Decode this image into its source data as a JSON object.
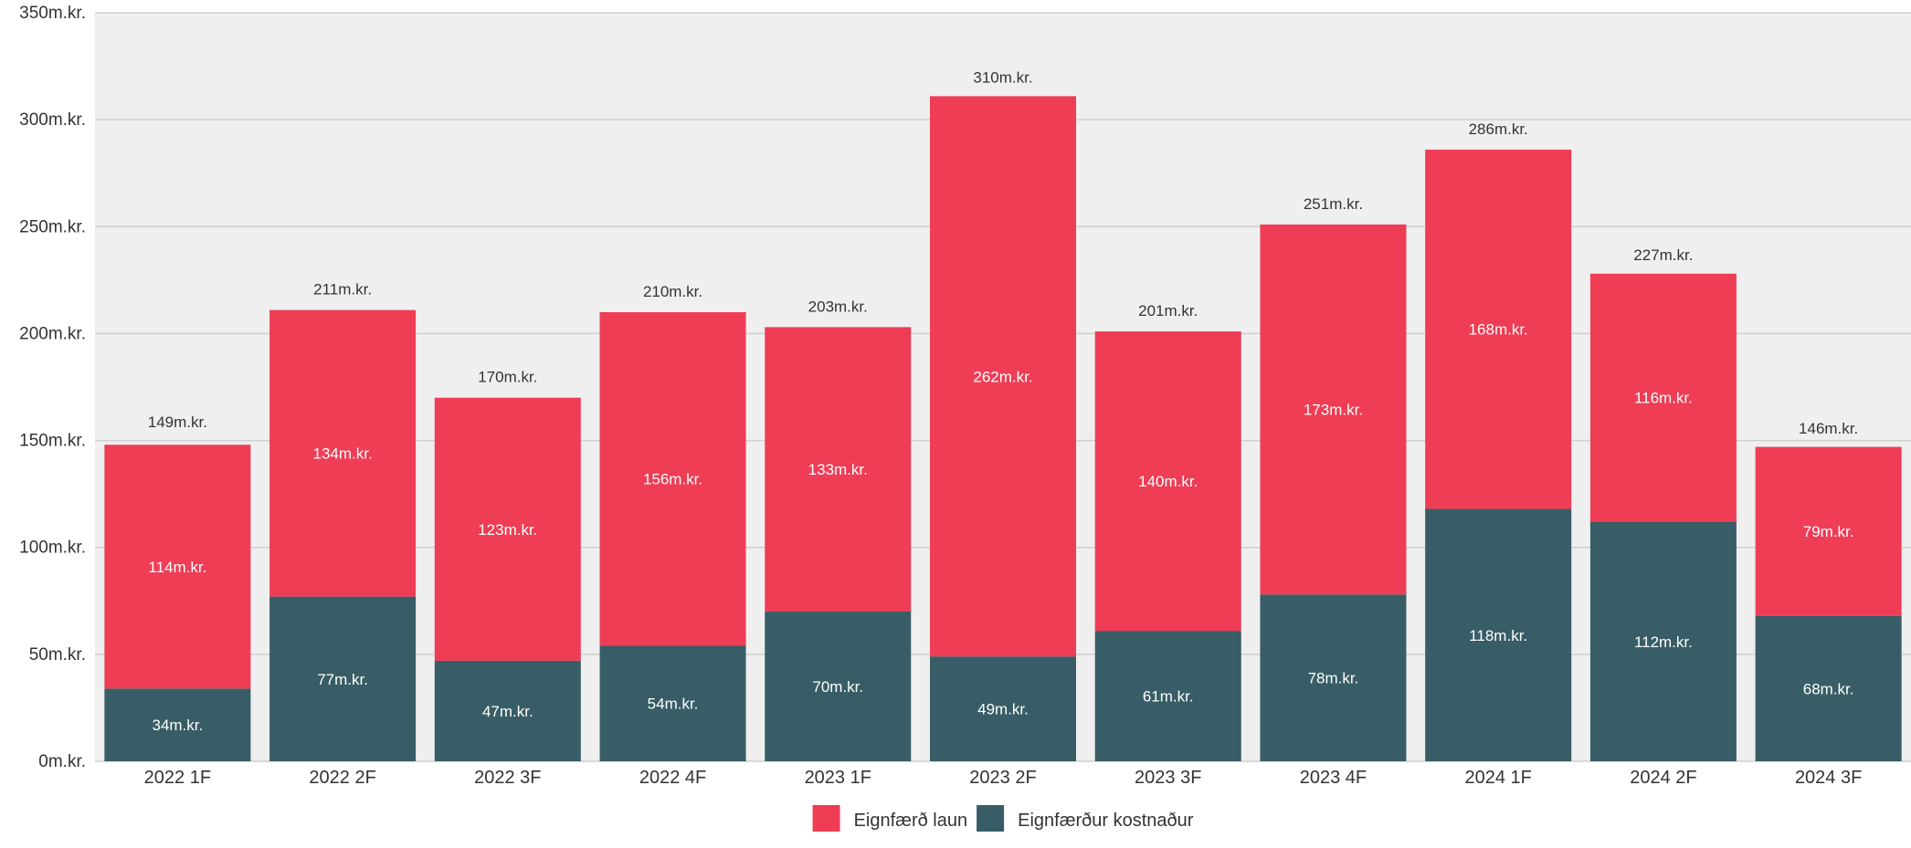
{
  "chart_data": {
    "type": "bar",
    "stacked": true,
    "categories": [
      "2022 1F",
      "2022 2F",
      "2022 3F",
      "2022 4F",
      "2023 1F",
      "2023 2F",
      "2023 3F",
      "2023 4F",
      "2024 1F",
      "2024 2F",
      "2024 3F"
    ],
    "series": [
      {
        "name": "Eignfærður kostnaður",
        "color": "#385d66",
        "values": [
          34,
          77,
          47,
          54,
          70,
          49,
          61,
          78,
          118,
          112,
          68
        ]
      },
      {
        "name": "Eignfærð laun",
        "color": "#ee3d55",
        "values": [
          114,
          134,
          123,
          156,
          133,
          262,
          140,
          173,
          168,
          116,
          79
        ]
      }
    ],
    "segment_labels": [
      [
        "34m.kr.",
        "77m.kr.",
        "47m.kr.",
        "54m.kr.",
        "70m.kr.",
        "49m.kr.",
        "61m.kr.",
        "78m.kr.",
        "118m.kr.",
        "112m.kr.",
        "68m.kr."
      ],
      [
        "114m.kr.",
        "134m.kr.",
        "123m.kr.",
        "156m.kr.",
        "133m.kr.",
        "262m.kr.",
        "140m.kr.",
        "173m.kr.",
        "168m.kr.",
        "116m.kr.",
        "79m.kr."
      ]
    ],
    "totals": [
      149,
      211,
      170,
      210,
      203,
      310,
      201,
      251,
      286,
      227,
      146
    ],
    "total_labels": [
      "149m.kr.",
      "211m.kr.",
      "170m.kr.",
      "210m.kr.",
      "203m.kr.",
      "310m.kr.",
      "201m.kr.",
      "251m.kr.",
      "286m.kr.",
      "227m.kr.",
      "146m.kr."
    ],
    "yticks": [
      0,
      50,
      100,
      150,
      200,
      250,
      300,
      350
    ],
    "ytick_labels": [
      "0m.kr.",
      "50m.kr.",
      "100m.kr.",
      "150m.kr.",
      "200m.kr.",
      "250m.kr.",
      "300m.kr.",
      "350m.kr."
    ],
    "ylim": [
      0,
      350
    ],
    "grid": true,
    "legend_position": "bottom-center",
    "legend": [
      {
        "label": "Eignfærð laun",
        "color": "#ee3d55"
      },
      {
        "label": "Eignfærður kostnaður",
        "color": "#385d66"
      }
    ],
    "colors": {
      "plot_background": "#efefef",
      "gridline": "#cfcfcf",
      "axis_text": "#333333",
      "total_text": "#333333",
      "segment_text": "#ffffff"
    }
  }
}
